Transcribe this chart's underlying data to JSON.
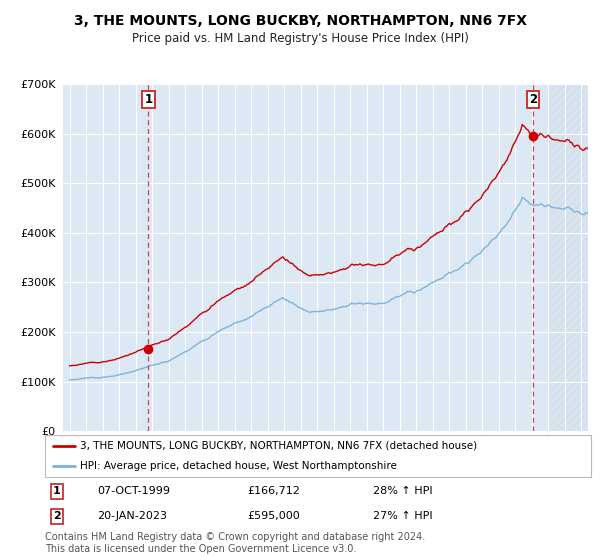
{
  "title": "3, THE MOUNTS, LONG BUCKBY, NORTHAMPTON, NN6 7FX",
  "subtitle": "Price paid vs. HM Land Registry's House Price Index (HPI)",
  "legend_line1": "3, THE MOUNTS, LONG BUCKBY, NORTHAMPTON, NN6 7FX (detached house)",
  "legend_line2": "HPI: Average price, detached house, West Northamptonshire",
  "annotation1_label": "1",
  "annotation1_date": "07-OCT-1999",
  "annotation1_price": "£166,712",
  "annotation1_hpi": "28% ↑ HPI",
  "annotation2_label": "2",
  "annotation2_date": "20-JAN-2023",
  "annotation2_price": "£595,000",
  "annotation2_hpi": "27% ↑ HPI",
  "sale1_x": 1999.77,
  "sale1_y": 166712,
  "sale2_x": 2023.05,
  "sale2_y": 595000,
  "ylim": [
    0,
    700000
  ],
  "xlim_start": 1994.6,
  "xlim_end": 2026.4,
  "bg_color": "#dce9f5",
  "hatch_bg_color": "#cddaeb",
  "grid_color": "#ffffff",
  "line_color_red": "#cc0000",
  "line_color_blue": "#7fb3d9",
  "dashed_line_color": "#cc4444",
  "footnote": "Contains HM Land Registry data © Crown copyright and database right 2024.\nThis data is licensed under the Open Government Licence v3.0.",
  "copyright_fontsize": 7.0,
  "title_fontsize": 10.0,
  "subtitle_fontsize": 8.5
}
